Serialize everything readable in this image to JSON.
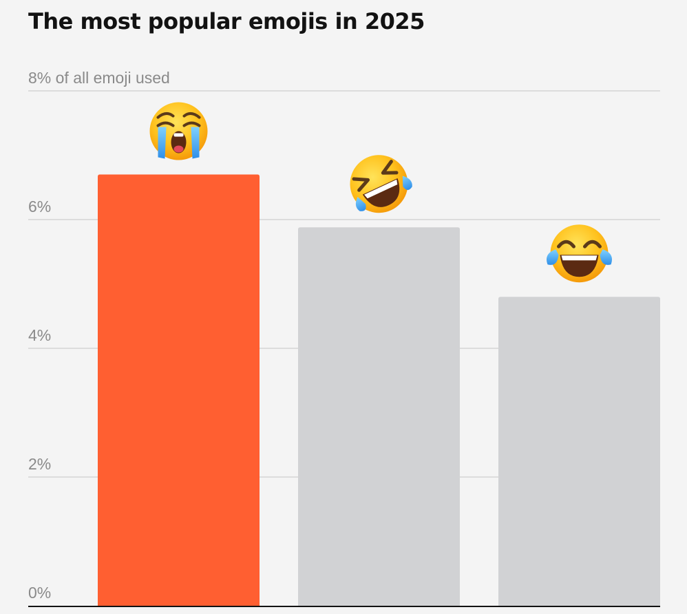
{
  "chart_data": {
    "type": "bar",
    "title": "The most popular emojis in 2025",
    "ylabel": "",
    "xlabel": "",
    "ylim": [
      0,
      8
    ],
    "yticks": [
      0,
      2,
      4,
      6,
      8
    ],
    "ytick_labels": [
      "0%",
      "2%",
      "4%",
      "6%",
      "8% of all emoji used"
    ],
    "grid": true,
    "categories": [
      "loudly-crying-face",
      "rolling-on-the-floor-laughing",
      "face-with-tears-of-joy"
    ],
    "values": [
      6.7,
      5.88,
      4.8
    ],
    "colors": [
      "#ff5f31",
      "#d1d2d4",
      "#d1d2d4"
    ]
  }
}
